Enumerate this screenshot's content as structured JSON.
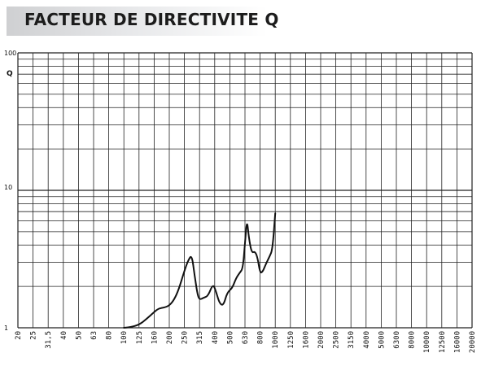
{
  "header": {
    "title": "FACTEUR DE DIRECTIVITE Q"
  },
  "chart_data": {
    "type": "line",
    "title": "FACTEUR DE DIRECTIVITE Q",
    "ylabel": "Q",
    "xscale": "log",
    "yscale": "log",
    "grid": true,
    "ylim": [
      1,
      100
    ],
    "yticks": [
      "1",
      "10",
      "100"
    ],
    "categories": [
      "20",
      "25",
      "31,5",
      "40",
      "50",
      "63",
      "80",
      "100",
      "125",
      "160",
      "200",
      "250",
      "315",
      "400",
      "500",
      "630",
      "800",
      "1000",
      "1250",
      "1600",
      "2000",
      "2500",
      "3150",
      "4000",
      "5000",
      "6300",
      "8000",
      "10000",
      "12500",
      "16000",
      "20000"
    ],
    "series": [
      {
        "color": "#111111",
        "points": [
          [
            100,
            1.0
          ],
          [
            110,
            1.01
          ],
          [
            125,
            1.05
          ],
          [
            140,
            1.15
          ],
          [
            160,
            1.3
          ],
          [
            170,
            1.38
          ],
          [
            185,
            1.4
          ],
          [
            200,
            1.45
          ],
          [
            215,
            1.6
          ],
          [
            230,
            1.9
          ],
          [
            250,
            2.6
          ],
          [
            265,
            3.1
          ],
          [
            280,
            3.4
          ],
          [
            292,
            2.4
          ],
          [
            305,
            1.75
          ],
          [
            315,
            1.6
          ],
          [
            335,
            1.65
          ],
          [
            360,
            1.7
          ],
          [
            390,
            2.1
          ],
          [
            410,
            1.8
          ],
          [
            430,
            1.5
          ],
          [
            455,
            1.45
          ],
          [
            480,
            1.8
          ],
          [
            520,
            1.95
          ],
          [
            550,
            2.3
          ],
          [
            580,
            2.5
          ],
          [
            610,
            2.7
          ],
          [
            630,
            4.1
          ],
          [
            650,
            6.2
          ],
          [
            670,
            4.5
          ],
          [
            700,
            3.5
          ],
          [
            740,
            3.6
          ],
          [
            770,
            3.2
          ],
          [
            800,
            2.5
          ],
          [
            830,
            2.55
          ],
          [
            870,
            2.9
          ],
          [
            920,
            3.3
          ],
          [
            960,
            3.7
          ],
          [
            1000,
            6.8
          ]
        ]
      }
    ]
  }
}
